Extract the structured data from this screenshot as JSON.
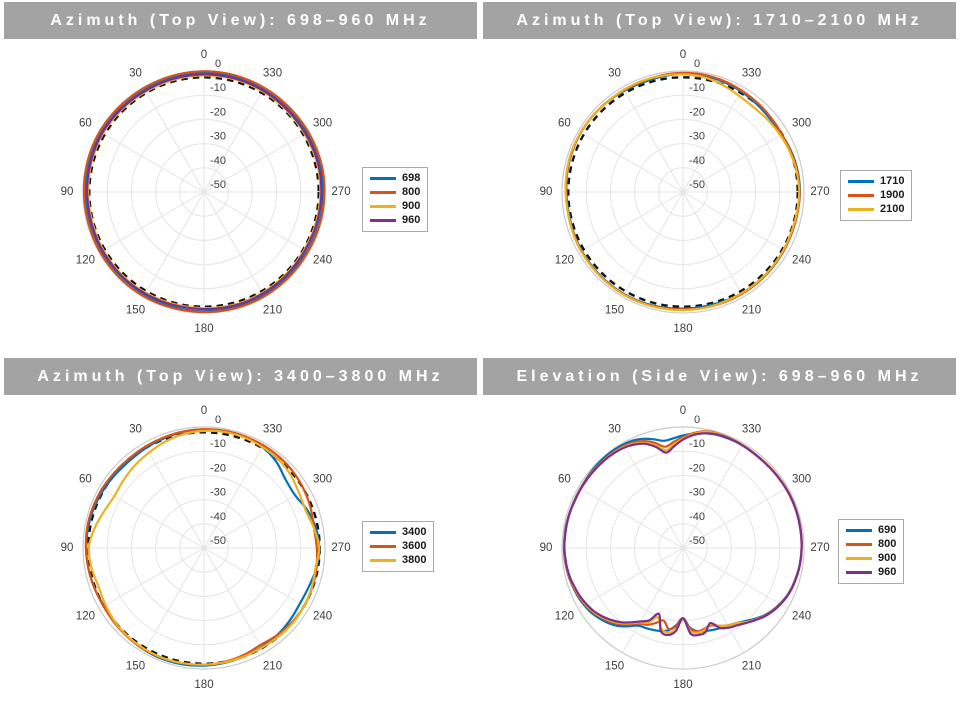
{
  "page": {
    "background": "#ffffff"
  },
  "colors": {
    "title_bar_bg": "#a3a3a3",
    "title_text": "#ffffff",
    "grid": "#e4e4e4",
    "grid_outer": "#c9c9c9",
    "tick_label": "#3d3d3d",
    "reference_dashed": "#141414",
    "series_blue": "#0072BD",
    "series_orange": "#D95319",
    "series_yellow": "#EDB120",
    "series_purple": "#7E2F8E"
  },
  "chart_data": [
    {
      "type": "line",
      "subtype": "polar",
      "title": "Azimuth (Top View): 698–960 MHz",
      "angle_zero_location": "top",
      "angle_direction": "counterclockwise",
      "angle_tick_labels_deg": [
        0,
        30,
        60,
        90,
        120,
        150,
        180,
        210,
        240,
        270,
        300,
        330
      ],
      "r_ticks_db": [
        0,
        -10,
        -20,
        -30,
        -40,
        -50
      ],
      "r_range_db": [
        -50,
        0
      ],
      "grid": true,
      "legend_position": "right-middle",
      "reference_dashed_circle_db": -2.6,
      "angles_deg": [
        0,
        10,
        20,
        30,
        40,
        50,
        60,
        70,
        80,
        90,
        100,
        110,
        120,
        130,
        140,
        150,
        160,
        170,
        180,
        190,
        200,
        210,
        220,
        230,
        240,
        250,
        260,
        270,
        280,
        290,
        300,
        310,
        320,
        330,
        340,
        350
      ],
      "series": [
        {
          "name": "698",
          "color": "#0072BD",
          "values": [
            -0.6,
            -0.7,
            -0.8,
            -0.9,
            -1.0,
            -1.0,
            -0.9,
            -0.8,
            -0.8,
            -0.9,
            -1.0,
            -1.1,
            -1.2,
            -1.2,
            -1.1,
            -1.0,
            -0.9,
            -0.8,
            -0.7,
            -0.7,
            -0.8,
            -0.9,
            -1.0,
            -1.0,
            -0.9,
            -0.8,
            -0.7,
            -0.7,
            -0.8,
            -0.9,
            -1.0,
            -1.0,
            -0.9,
            -0.8,
            -0.7,
            -0.6
          ]
        },
        {
          "name": "800",
          "color": "#D95319",
          "values": [
            -0.1,
            -0.2,
            -0.3,
            -0.4,
            -0.4,
            -0.3,
            -0.2,
            -0.2,
            -0.3,
            -0.4,
            -0.5,
            -0.5,
            -0.4,
            -0.3,
            -0.2,
            -0.2,
            -0.3,
            -0.4,
            -0.4,
            -0.3,
            -0.2,
            -0.2,
            -0.3,
            -0.4,
            -0.5,
            -0.4,
            -0.3,
            -0.2,
            -0.1,
            -0.2,
            -0.3,
            -0.4,
            -0.4,
            -0.3,
            -0.2,
            -0.1
          ]
        },
        {
          "name": "900",
          "color": "#EDB120",
          "values": [
            -1.8,
            -1.9,
            -2.0,
            -2.1,
            -2.0,
            -1.9,
            -1.8,
            -1.9,
            -2.0,
            -2.1,
            -2.2,
            -2.1,
            -2.0,
            -1.9,
            -1.8,
            -1.9,
            -2.0,
            -2.1,
            -2.0,
            -1.9,
            -1.8,
            -1.9,
            -2.0,
            -2.1,
            -2.2,
            -2.1,
            -2.0,
            -1.9,
            -1.8,
            -1.9,
            -2.0,
            -2.1,
            -2.0,
            -1.9,
            -1.8,
            -1.8
          ]
        },
        {
          "name": "960",
          "color": "#7E2F8E",
          "values": [
            -1.4,
            -1.5,
            -1.6,
            -1.7,
            -1.6,
            -1.5,
            -1.4,
            -1.5,
            -1.6,
            -1.7,
            -1.8,
            -1.7,
            -1.6,
            -1.5,
            -1.4,
            -1.5,
            -1.6,
            -1.7,
            -1.6,
            -1.5,
            -1.4,
            -1.5,
            -1.6,
            -1.7,
            -1.8,
            -1.7,
            -1.6,
            -1.5,
            -1.4,
            -1.5,
            -1.6,
            -1.7,
            -1.6,
            -1.5,
            -1.4,
            -1.4
          ]
        }
      ]
    },
    {
      "type": "line",
      "subtype": "polar",
      "title": "Azimuth (Top View): 1710–2100 MHz",
      "angle_zero_location": "top",
      "angle_direction": "counterclockwise",
      "angle_tick_labels_deg": [
        0,
        30,
        60,
        90,
        120,
        150,
        180,
        210,
        240,
        270,
        300,
        330
      ],
      "r_ticks_db": [
        0,
        -10,
        -20,
        -30,
        -40,
        -50
      ],
      "r_range_db": [
        -50,
        0
      ],
      "grid": true,
      "legend_position": "right-middle",
      "reference_dashed_circle_db": -2.6,
      "angles_deg": [
        0,
        10,
        20,
        30,
        40,
        50,
        60,
        70,
        80,
        90,
        100,
        110,
        120,
        130,
        140,
        150,
        160,
        170,
        180,
        190,
        200,
        210,
        220,
        230,
        240,
        250,
        260,
        270,
        280,
        290,
        300,
        310,
        320,
        330,
        340,
        350
      ],
      "series": [
        {
          "name": "1710",
          "color": "#0072BD",
          "values": [
            -1.2,
            -1.5,
            -1.8,
            -1.6,
            -1.4,
            -1.3,
            -1.2,
            -1.3,
            -1.5,
            -1.8,
            -2.0,
            -1.8,
            -1.6,
            -1.5,
            -1.4,
            -1.3,
            -1.4,
            -1.6,
            -1.8,
            -1.9,
            -1.8,
            -1.6,
            -1.5,
            -1.6,
            -1.8,
            -2.0,
            -1.9,
            -1.7,
            -1.8,
            -2.2,
            -2.8,
            -3.0,
            -2.6,
            -2.0,
            -1.5,
            -1.2
          ]
        },
        {
          "name": "1900",
          "color": "#D95319",
          "values": [
            -0.8,
            -1.0,
            -1.3,
            -1.4,
            -1.3,
            -1.2,
            -1.1,
            -1.2,
            -1.4,
            -1.6,
            -1.7,
            -1.6,
            -1.4,
            -1.3,
            -1.2,
            -1.1,
            -1.2,
            -1.4,
            -1.5,
            -1.4,
            -1.3,
            -1.4,
            -1.5,
            -1.7,
            -1.9,
            -2.0,
            -1.9,
            -1.8,
            -2.0,
            -2.4,
            -2.7,
            -2.4,
            -2.0,
            -1.6,
            -1.1,
            -0.8
          ]
        },
        {
          "name": "2100",
          "color": "#EDB120",
          "values": [
            -1.4,
            -1.2,
            -1.1,
            -1.2,
            -1.4,
            -1.3,
            -1.1,
            -1.0,
            -1.2,
            -1.5,
            -1.7,
            -1.5,
            -1.3,
            -1.2,
            -1.1,
            -1.0,
            -1.0,
            -1.1,
            -1.2,
            -1.3,
            -1.5,
            -1.7,
            -1.8,
            -1.9,
            -2.1,
            -2.3,
            -2.2,
            -2.0,
            -2.3,
            -2.8,
            -3.4,
            -4.0,
            -4.4,
            -4.0,
            -2.8,
            -1.8
          ]
        }
      ]
    },
    {
      "type": "line",
      "subtype": "polar",
      "title": "Azimuth (Top View): 3400–3800 MHz",
      "angle_zero_location": "top",
      "angle_direction": "counterclockwise",
      "angle_tick_labels_deg": [
        0,
        30,
        60,
        90,
        120,
        150,
        180,
        210,
        240,
        270,
        300,
        330
      ],
      "r_ticks_db": [
        0,
        -10,
        -20,
        -30,
        -40,
        -50
      ],
      "r_range_db": [
        -50,
        0
      ],
      "grid": true,
      "legend_position": "right-middle",
      "reference_dashed_circle_db": -2.2,
      "angles_deg": [
        0,
        10,
        20,
        30,
        40,
        50,
        60,
        70,
        80,
        90,
        100,
        110,
        120,
        130,
        140,
        150,
        160,
        170,
        180,
        190,
        200,
        210,
        220,
        230,
        240,
        250,
        260,
        270,
        280,
        290,
        300,
        310,
        320,
        330,
        340,
        350
      ],
      "series": [
        {
          "name": "3400",
          "color": "#0072BD",
          "values": [
            -1.0,
            -1.2,
            -1.8,
            -2.2,
            -2.6,
            -2.4,
            -2.0,
            -1.6,
            -1.4,
            -1.3,
            -1.5,
            -1.8,
            -2.2,
            -2.0,
            -1.6,
            -1.2,
            -1.0,
            -1.1,
            -1.4,
            -1.8,
            -2.2,
            -2.6,
            -3.0,
            -3.6,
            -4.2,
            -3.8,
            -2.8,
            -2.4,
            -3.0,
            -4.5,
            -6.5,
            -6.0,
            -3.5,
            -1.8,
            -1.0,
            -0.9
          ]
        },
        {
          "name": "3600",
          "color": "#D95319",
          "values": [
            -0.9,
            -1.1,
            -1.4,
            -1.6,
            -1.8,
            -1.6,
            -1.3,
            -1.1,
            -1.0,
            -1.2,
            -1.5,
            -1.8,
            -2.0,
            -1.8,
            -1.5,
            -1.3,
            -1.4,
            -1.6,
            -1.8,
            -2.2,
            -2.8,
            -3.6,
            -3.0,
            -2.4,
            -2.2,
            -2.4,
            -2.8,
            -3.4,
            -3.8,
            -3.0,
            -2.2,
            -1.6,
            -1.2,
            -1.0,
            -0.9,
            -0.8
          ]
        },
        {
          "name": "3800",
          "color": "#EDB120",
          "values": [
            -1.6,
            -2.2,
            -3.2,
            -4.5,
            -5.5,
            -6.5,
            -7.2,
            -6.0,
            -4.0,
            -2.4,
            -2.8,
            -3.6,
            -3.0,
            -2.2,
            -1.8,
            -1.6,
            -1.5,
            -1.6,
            -1.8,
            -2.0,
            -2.2,
            -2.4,
            -2.2,
            -2.0,
            -2.2,
            -2.6,
            -3.2,
            -2.4,
            -3.8,
            -5.2,
            -4.6,
            -3.2,
            -2.2,
            -1.8,
            -1.4,
            -1.3
          ]
        }
      ]
    },
    {
      "type": "line",
      "subtype": "polar",
      "title": "Elevation (Side View): 698–960 MHz",
      "angle_zero_location": "top",
      "angle_direction": "counterclockwise",
      "angle_tick_labels_deg": [
        0,
        30,
        60,
        90,
        120,
        150,
        180,
        210,
        240,
        270,
        300,
        330
      ],
      "r_ticks_db": [
        0,
        -10,
        -20,
        -30,
        -40,
        -50
      ],
      "r_range_db": [
        -50,
        0
      ],
      "grid": true,
      "legend_position": "right-middle",
      "reference_dashed_circle_db": null,
      "angles_deg": [
        0,
        5,
        10,
        15,
        20,
        25,
        30,
        35,
        40,
        45,
        50,
        55,
        60,
        65,
        70,
        75,
        80,
        85,
        90,
        95,
        100,
        105,
        110,
        115,
        120,
        125,
        130,
        135,
        140,
        145,
        150,
        155,
        160,
        165,
        170,
        175,
        180,
        185,
        190,
        195,
        200,
        205,
        210,
        215,
        220,
        225,
        230,
        235,
        240,
        245,
        250,
        255,
        260,
        265,
        270,
        275,
        280,
        285,
        290,
        295,
        300,
        305,
        310,
        315,
        320,
        325,
        330,
        335,
        340,
        345,
        350,
        355
      ],
      "series": [
        {
          "name": "690",
          "color": "#0072BD",
          "values": [
            -3.5,
            -4.5,
            -5.0,
            -3.5,
            -2.0,
            -1.0,
            -0.6,
            -0.4,
            -0.4,
            -0.5,
            -0.7,
            -0.9,
            -1.0,
            -1.0,
            -1.0,
            -0.9,
            -0.8,
            -0.8,
            -0.8,
            -0.9,
            -1.1,
            -1.4,
            -1.8,
            -2.2,
            -2.8,
            -3.6,
            -4.8,
            -6.2,
            -8.0,
            -10.5,
            -13.0,
            -13.5,
            -14.0,
            -14.5,
            -15.5,
            -18.0,
            -21.0,
            -17.0,
            -15.0,
            -14.5,
            -14.0,
            -13.5,
            -13.0,
            -12.0,
            -10.5,
            -8.5,
            -6.5,
            -5.0,
            -3.8,
            -2.8,
            -2.2,
            -1.8,
            -1.4,
            -1.2,
            -1.0,
            -0.9,
            -0.8,
            -0.7,
            -0.7,
            -0.7,
            -0.8,
            -0.9,
            -1.0,
            -1.1,
            -1.2,
            -1.1,
            -1.0,
            -1.0,
            -1.1,
            -1.3,
            -1.8,
            -2.6
          ]
        },
        {
          "name": "800",
          "color": "#D95319",
          "values": [
            -4.2,
            -6.0,
            -7.5,
            -5.0,
            -3.0,
            -1.8,
            -1.3,
            -1.1,
            -1.0,
            -1.0,
            -1.0,
            -1.0,
            -1.0,
            -1.1,
            -1.0,
            -0.9,
            -0.9,
            -0.9,
            -0.9,
            -1.0,
            -1.2,
            -1.5,
            -2.0,
            -2.5,
            -3.2,
            -4.2,
            -5.5,
            -7.0,
            -9.0,
            -11.5,
            -14.0,
            -15.0,
            -17.0,
            -19.0,
            -16.0,
            -17.5,
            -21.0,
            -16.5,
            -15.0,
            -15.5,
            -16.0,
            -14.5,
            -13.0,
            -12.0,
            -10.0,
            -8.0,
            -6.2,
            -4.8,
            -3.6,
            -2.7,
            -2.1,
            -1.7,
            -1.3,
            -1.1,
            -1.0,
            -0.9,
            -0.8,
            -0.8,
            -0.7,
            -0.7,
            -0.7,
            -0.8,
            -0.9,
            -1.0,
            -1.0,
            -0.9,
            -0.8,
            -0.7,
            -0.6,
            -0.5,
            -1.0,
            -2.4
          ]
        },
        {
          "name": "900",
          "color": "#EDB120",
          "values": [
            -4.8,
            -7.0,
            -9.0,
            -6.0,
            -3.8,
            -2.4,
            -1.7,
            -1.4,
            -1.3,
            -1.2,
            -1.2,
            -1.2,
            -1.1,
            -1.2,
            -1.1,
            -1.0,
            -1.0,
            -0.9,
            -1.0,
            -1.1,
            -1.3,
            -1.7,
            -2.2,
            -2.8,
            -3.5,
            -4.5,
            -5.8,
            -7.5,
            -9.5,
            -12.0,
            -14.5,
            -16.0,
            -19.5,
            -15.5,
            -14.5,
            -16.0,
            -20.5,
            -15.5,
            -14.5,
            -15.0,
            -16.5,
            -14.5,
            -13.0,
            -12.0,
            -10.0,
            -8.0,
            -6.0,
            -4.6,
            -3.5,
            -2.6,
            -2.0,
            -1.6,
            -1.3,
            -1.1,
            -1.0,
            -0.9,
            -0.9,
            -0.8,
            -0.8,
            -0.8,
            -0.8,
            -0.9,
            -1.0,
            -1.1,
            -1.1,
            -1.0,
            -0.9,
            -0.8,
            -0.7,
            -0.7,
            -1.2,
            -2.8
          ]
        },
        {
          "name": "960",
          "color": "#7E2F8E",
          "values": [
            -5.2,
            -7.8,
            -10.0,
            -6.8,
            -4.2,
            -2.8,
            -2.0,
            -1.6,
            -1.4,
            -1.3,
            -1.3,
            -1.2,
            -1.2,
            -1.2,
            -1.1,
            -1.0,
            -1.0,
            -1.0,
            -1.0,
            -1.2,
            -1.4,
            -1.8,
            -2.4,
            -3.0,
            -3.8,
            -4.8,
            -6.2,
            -8.0,
            -10.0,
            -12.5,
            -15.0,
            -17.0,
            -21.0,
            -14.5,
            -13.5,
            -15.5,
            -21.0,
            -14.5,
            -13.5,
            -14.0,
            -17.0,
            -13.5,
            -12.0,
            -11.0,
            -9.5,
            -7.8,
            -6.0,
            -4.6,
            -3.5,
            -2.6,
            -2.0,
            -1.6,
            -1.3,
            -1.1,
            -1.0,
            -0.9,
            -0.9,
            -0.8,
            -0.8,
            -0.8,
            -0.9,
            -1.0,
            -1.1,
            -1.2,
            -1.2,
            -1.1,
            -1.0,
            -0.9,
            -0.9,
            -1.2,
            -1.9,
            -3.2
          ]
        }
      ]
    }
  ]
}
